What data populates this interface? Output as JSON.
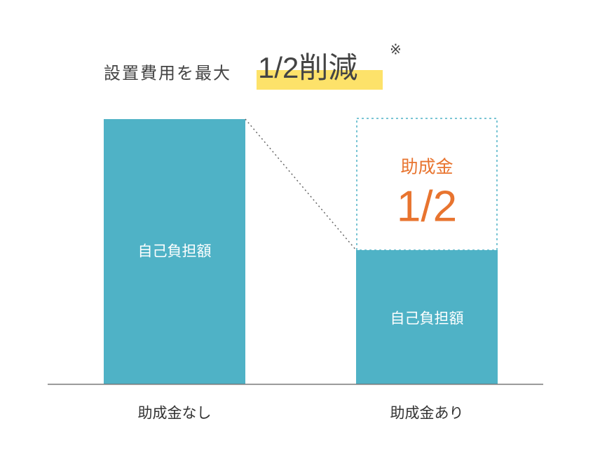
{
  "title": {
    "prefix": "設置費用を最大",
    "highlight": "1/2削減",
    "note": "※"
  },
  "bars": [
    {
      "label": "自己負担額",
      "category": "助成金なし"
    },
    {
      "label": "自己負担額",
      "category": "助成金あり",
      "subsidy_label": "助成金",
      "subsidy_amount": "1/2"
    }
  ]
}
